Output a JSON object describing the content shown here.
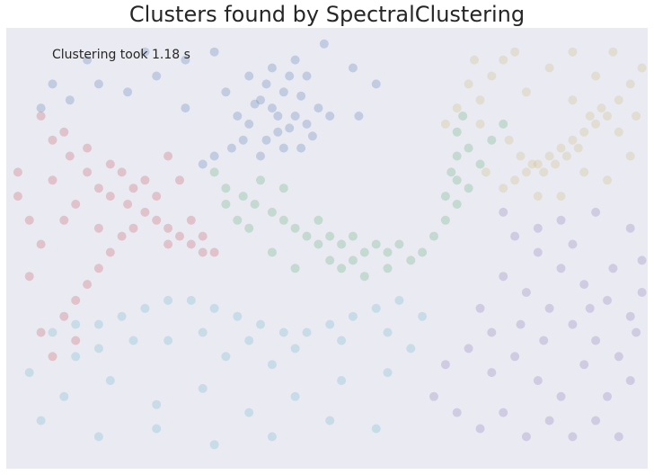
{
  "chart_data": {
    "type": "scatter",
    "title": "Clusters found by SpectralClustering",
    "annotation": "Clustering took 1.18 s",
    "xlabel": "",
    "ylabel": "",
    "grid": false,
    "legend": "none",
    "xlim": [
      -0.36,
      0.75
    ],
    "ylim": [
      -0.58,
      0.52
    ],
    "point_alpha": 0.25,
    "series": [
      {
        "color": "#4c72b0",
        "points": [
          [
            0.08,
            0.34
          ],
          [
            0.1,
            0.32
          ],
          [
            0.12,
            0.36
          ],
          [
            0.14,
            0.3
          ],
          [
            0.06,
            0.28
          ],
          [
            0.11,
            0.26
          ],
          [
            0.15,
            0.35
          ],
          [
            0.09,
            0.38
          ],
          [
            0.13,
            0.4
          ],
          [
            0.07,
            0.33
          ],
          [
            0.05,
            0.24
          ],
          [
            0.03,
            0.22
          ],
          [
            0.0,
            0.2
          ],
          [
            -0.02,
            0.18
          ],
          [
            0.16,
            0.28
          ],
          [
            0.18,
            0.32
          ],
          [
            0.12,
            0.22
          ],
          [
            0.08,
            0.2
          ],
          [
            0.04,
            0.3
          ],
          [
            0.17,
            0.25
          ],
          [
            0.1,
            0.42
          ],
          [
            0.14,
            0.44
          ],
          [
            0.06,
            0.4
          ],
          [
            0.2,
            0.3
          ],
          [
            0.02,
            0.36
          ],
          [
            -0.05,
            0.32
          ],
          [
            -0.1,
            0.4
          ],
          [
            -0.15,
            0.36
          ],
          [
            -0.2,
            0.38
          ],
          [
            -0.25,
            0.34
          ],
          [
            -0.3,
            0.32
          ],
          [
            -0.22,
            0.44
          ],
          [
            -0.12,
            0.46
          ],
          [
            -0.05,
            0.44
          ],
          [
            0.0,
            0.46
          ],
          [
            0.19,
            0.48
          ],
          [
            0.24,
            0.42
          ],
          [
            0.28,
            0.38
          ],
          [
            0.25,
            0.3
          ],
          [
            -0.28,
            0.38
          ],
          [
            0.16,
            0.4
          ],
          [
            0.11,
            0.3
          ],
          [
            0.09,
            0.24
          ],
          [
            0.13,
            0.27
          ],
          [
            0.15,
            0.22
          ]
        ]
      },
      {
        "color": "#c44e52",
        "points": [
          [
            -0.3,
            0.3
          ],
          [
            -0.28,
            0.24
          ],
          [
            -0.25,
            0.2
          ],
          [
            -0.22,
            0.16
          ],
          [
            -0.2,
            0.12
          ],
          [
            -0.18,
            0.1
          ],
          [
            -0.15,
            0.08
          ],
          [
            -0.12,
            0.06
          ],
          [
            -0.1,
            0.04
          ],
          [
            -0.08,
            0.02
          ],
          [
            -0.06,
            0.0
          ],
          [
            -0.04,
            -0.02
          ],
          [
            -0.02,
            -0.04
          ],
          [
            0.0,
            -0.04
          ],
          [
            -0.14,
            0.02
          ],
          [
            -0.16,
            0.0
          ],
          [
            -0.18,
            -0.04
          ],
          [
            -0.2,
            -0.08
          ],
          [
            -0.22,
            -0.12
          ],
          [
            -0.24,
            -0.16
          ],
          [
            -0.26,
            -0.2
          ],
          [
            -0.3,
            -0.02
          ],
          [
            -0.32,
            0.04
          ],
          [
            -0.34,
            0.1
          ],
          [
            -0.28,
            0.14
          ],
          [
            -0.24,
            0.08
          ],
          [
            -0.2,
            0.02
          ],
          [
            -0.16,
            0.16
          ],
          [
            -0.12,
            0.14
          ],
          [
            -0.08,
            0.2
          ],
          [
            -0.06,
            0.14
          ],
          [
            -0.1,
            0.1
          ],
          [
            -0.14,
            0.12
          ],
          [
            -0.18,
            0.18
          ],
          [
            -0.22,
            0.22
          ],
          [
            -0.26,
            0.26
          ],
          [
            -0.32,
            -0.1
          ],
          [
            -0.3,
            -0.24
          ],
          [
            -0.28,
            -0.3
          ],
          [
            -0.24,
            -0.26
          ],
          [
            -0.34,
            0.16
          ],
          [
            -0.26,
            0.04
          ],
          [
            -0.04,
            0.04
          ],
          [
            -0.02,
            0.0
          ],
          [
            -0.08,
            -0.02
          ]
        ]
      },
      {
        "color": "#55a868",
        "points": [
          [
            0.0,
            0.16
          ],
          [
            0.02,
            0.12
          ],
          [
            0.05,
            0.1
          ],
          [
            0.07,
            0.08
          ],
          [
            0.1,
            0.06
          ],
          [
            0.12,
            0.04
          ],
          [
            0.14,
            0.02
          ],
          [
            0.16,
            0.0
          ],
          [
            0.18,
            -0.02
          ],
          [
            0.2,
            0.0
          ],
          [
            0.22,
            -0.02
          ],
          [
            0.24,
            0.0
          ],
          [
            0.26,
            -0.04
          ],
          [
            0.28,
            -0.02
          ],
          [
            0.3,
            -0.04
          ],
          [
            0.32,
            -0.02
          ],
          [
            0.2,
            -0.06
          ],
          [
            0.22,
            -0.08
          ],
          [
            0.24,
            -0.06
          ],
          [
            0.26,
            -0.1
          ],
          [
            0.3,
            -0.08
          ],
          [
            0.34,
            -0.06
          ],
          [
            0.36,
            -0.04
          ],
          [
            0.38,
            0.0
          ],
          [
            0.4,
            0.04
          ],
          [
            0.42,
            0.08
          ],
          [
            0.42,
            0.14
          ],
          [
            0.42,
            0.2
          ],
          [
            0.42,
            0.26
          ],
          [
            0.43,
            0.3
          ],
          [
            0.44,
            0.22
          ],
          [
            0.41,
            0.16
          ],
          [
            0.4,
            0.1
          ],
          [
            0.44,
            0.12
          ],
          [
            0.46,
            0.18
          ],
          [
            0.48,
            0.24
          ],
          [
            0.5,
            0.28
          ],
          [
            0.12,
            0.12
          ],
          [
            0.08,
            0.14
          ],
          [
            0.02,
            0.08
          ],
          [
            0.04,
            0.04
          ],
          [
            0.06,
            0.02
          ],
          [
            0.1,
            -0.04
          ],
          [
            0.14,
            -0.08
          ],
          [
            0.18,
            0.04
          ]
        ]
      },
      {
        "color": "#64b5cd",
        "points": [
          [
            -0.28,
            -0.24
          ],
          [
            -0.24,
            -0.22
          ],
          [
            -0.2,
            -0.22
          ],
          [
            -0.16,
            -0.2
          ],
          [
            -0.12,
            -0.18
          ],
          [
            -0.08,
            -0.16
          ],
          [
            -0.04,
            -0.16
          ],
          [
            0.0,
            -0.18
          ],
          [
            0.04,
            -0.2
          ],
          [
            0.08,
            -0.22
          ],
          [
            0.12,
            -0.24
          ],
          [
            0.16,
            -0.24
          ],
          [
            0.2,
            -0.22
          ],
          [
            0.24,
            -0.2
          ],
          [
            0.28,
            -0.18
          ],
          [
            0.32,
            -0.16
          ],
          [
            -0.2,
            -0.28
          ],
          [
            -0.14,
            -0.26
          ],
          [
            -0.08,
            -0.26
          ],
          [
            -0.02,
            -0.24
          ],
          [
            0.06,
            -0.26
          ],
          [
            0.14,
            -0.28
          ],
          [
            0.22,
            -0.26
          ],
          [
            0.3,
            -0.24
          ],
          [
            -0.32,
            -0.34
          ],
          [
            -0.26,
            -0.4
          ],
          [
            -0.18,
            -0.36
          ],
          [
            -0.1,
            -0.42
          ],
          [
            -0.02,
            -0.38
          ],
          [
            0.06,
            -0.44
          ],
          [
            0.14,
            -0.4
          ],
          [
            0.22,
            -0.36
          ],
          [
            0.3,
            -0.34
          ],
          [
            -0.3,
            -0.46
          ],
          [
            -0.2,
            -0.5
          ],
          [
            -0.1,
            -0.48
          ],
          [
            0.0,
            -0.52
          ],
          [
            0.1,
            -0.5
          ],
          [
            0.2,
            -0.46
          ],
          [
            0.28,
            -0.48
          ],
          [
            -0.24,
            -0.3
          ],
          [
            0.34,
            -0.28
          ],
          [
            0.36,
            -0.2
          ],
          [
            0.02,
            -0.3
          ],
          [
            0.1,
            -0.32
          ]
        ]
      },
      {
        "color": "#ccb974",
        "points": [
          [
            0.5,
            0.12
          ],
          [
            0.52,
            0.14
          ],
          [
            0.54,
            0.16
          ],
          [
            0.56,
            0.18
          ],
          [
            0.58,
            0.2
          ],
          [
            0.6,
            0.22
          ],
          [
            0.62,
            0.24
          ],
          [
            0.64,
            0.26
          ],
          [
            0.66,
            0.28
          ],
          [
            0.68,
            0.3
          ],
          [
            0.55,
            0.18
          ],
          [
            0.57,
            0.16
          ],
          [
            0.59,
            0.18
          ],
          [
            0.61,
            0.2
          ],
          [
            0.63,
            0.22
          ],
          [
            0.65,
            0.3
          ],
          [
            0.67,
            0.32
          ],
          [
            0.7,
            0.34
          ],
          [
            0.72,
            0.38
          ],
          [
            0.74,
            0.42
          ],
          [
            0.44,
            0.38
          ],
          [
            0.46,
            0.34
          ],
          [
            0.42,
            0.32
          ],
          [
            0.48,
            0.4
          ],
          [
            0.5,
            0.44
          ],
          [
            0.52,
            0.46
          ],
          [
            0.46,
            0.28
          ],
          [
            0.4,
            0.28
          ],
          [
            0.62,
            0.34
          ],
          [
            0.66,
            0.4
          ],
          [
            0.7,
            0.26
          ],
          [
            0.72,
            0.2
          ],
          [
            0.64,
            0.16
          ],
          [
            0.6,
            0.1
          ],
          [
            0.68,
            0.14
          ],
          [
            0.54,
            0.36
          ],
          [
            0.58,
            0.42
          ],
          [
            0.45,
            0.44
          ],
          [
            0.73,
            0.3
          ],
          [
            0.56,
            0.1
          ],
          [
            0.51,
            0.24
          ],
          [
            0.53,
            0.2
          ],
          [
            0.47,
            0.16
          ],
          [
            0.69,
            0.46
          ],
          [
            0.62,
            0.46
          ]
        ]
      },
      {
        "color": "#8172b2",
        "points": [
          [
            0.52,
            0.0
          ],
          [
            0.56,
            -0.04
          ],
          [
            0.6,
            -0.08
          ],
          [
            0.64,
            -0.12
          ],
          [
            0.68,
            -0.16
          ],
          [
            0.72,
            -0.2
          ],
          [
            0.5,
            -0.1
          ],
          [
            0.54,
            -0.14
          ],
          [
            0.58,
            -0.18
          ],
          [
            0.62,
            -0.22
          ],
          [
            0.66,
            -0.26
          ],
          [
            0.7,
            -0.3
          ],
          [
            0.74,
            -0.06
          ],
          [
            0.72,
            0.02
          ],
          [
            0.66,
            0.06
          ],
          [
            0.6,
            0.04
          ],
          [
            0.46,
            -0.18
          ],
          [
            0.44,
            -0.28
          ],
          [
            0.48,
            -0.34
          ],
          [
            0.52,
            -0.3
          ],
          [
            0.56,
            -0.36
          ],
          [
            0.6,
            -0.4
          ],
          [
            0.64,
            -0.32
          ],
          [
            0.68,
            -0.4
          ],
          [
            0.72,
            -0.36
          ],
          [
            0.4,
            -0.32
          ],
          [
            0.38,
            -0.4
          ],
          [
            0.42,
            -0.44
          ],
          [
            0.46,
            -0.48
          ],
          [
            0.5,
            -0.44
          ],
          [
            0.54,
            -0.5
          ],
          [
            0.58,
            -0.46
          ],
          [
            0.62,
            -0.5
          ],
          [
            0.66,
            -0.46
          ],
          [
            0.7,
            -0.5
          ],
          [
            0.74,
            -0.14
          ],
          [
            0.5,
            0.06
          ],
          [
            0.56,
            0.02
          ],
          [
            0.62,
            -0.02
          ],
          [
            0.48,
            -0.24
          ],
          [
            0.53,
            -0.22
          ],
          [
            0.57,
            -0.26
          ],
          [
            0.69,
            -0.08
          ],
          [
            0.65,
            -0.18
          ],
          [
            0.73,
            -0.24
          ]
        ]
      }
    ]
  }
}
